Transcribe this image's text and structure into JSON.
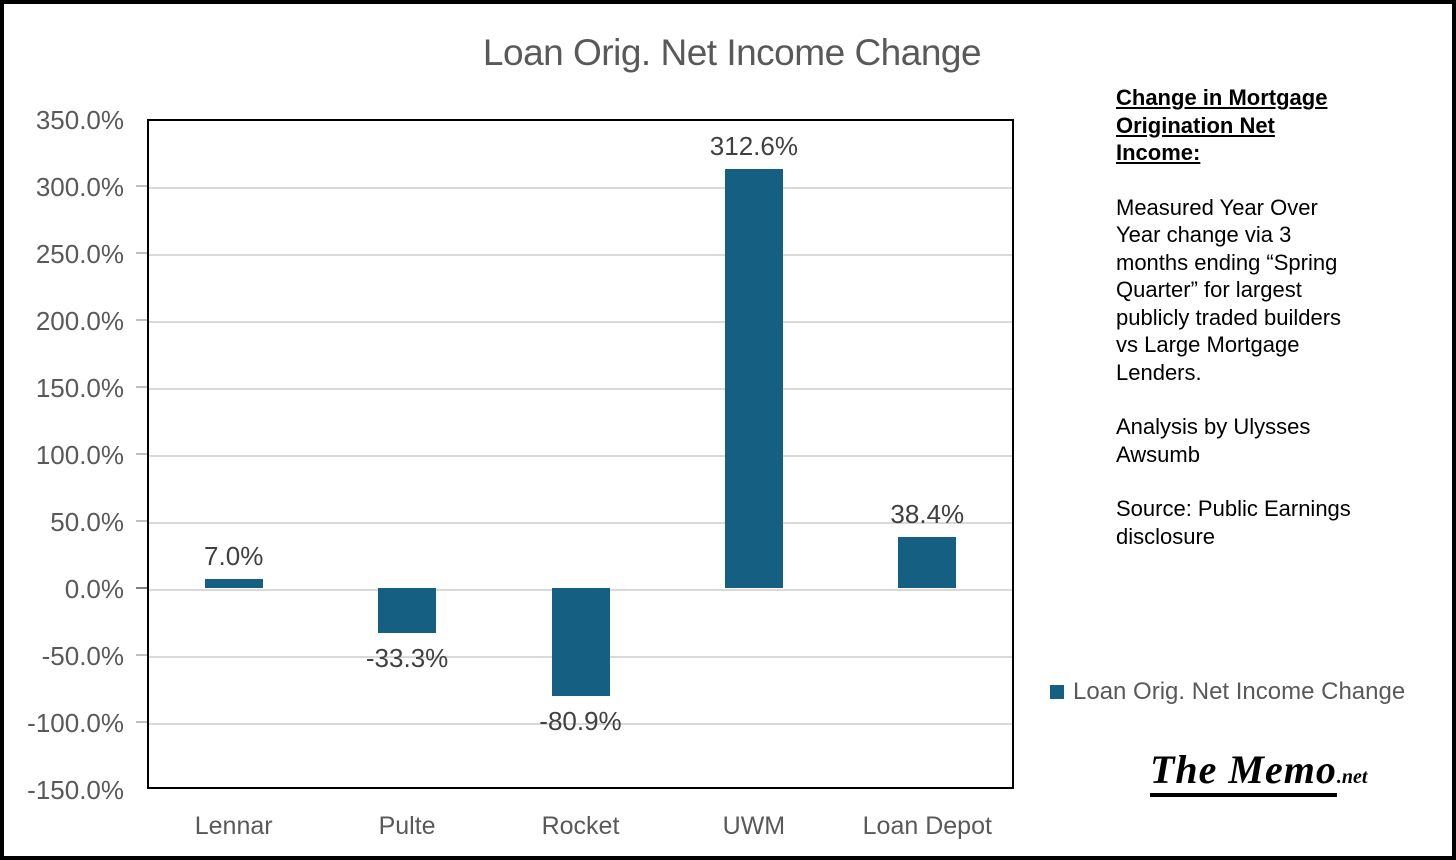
{
  "chart_data": {
    "type": "bar",
    "title": "Loan Orig. Net Income Change",
    "categories": [
      "Lennar",
      "Pulte",
      "Rocket",
      "UWM",
      "Loan Depot"
    ],
    "values": [
      7.0,
      -33.3,
      -80.9,
      312.6,
      38.4
    ],
    "data_labels": [
      "7.0%",
      "-33.3%",
      "-80.9%",
      "312.6%",
      "38.4%"
    ],
    "ylim": [
      -150,
      350
    ],
    "ytick_step": 50,
    "yticks": [
      {
        "value": 350,
        "label": "350.0%"
      },
      {
        "value": 300,
        "label": "300.0%"
      },
      {
        "value": 250,
        "label": "250.0%"
      },
      {
        "value": 200,
        "label": "200.0%"
      },
      {
        "value": 150,
        "label": "150.0%"
      },
      {
        "value": 100,
        "label": "100.0%"
      },
      {
        "value": 50,
        "label": "50.0%"
      },
      {
        "value": 0,
        "label": "0.0%"
      },
      {
        "value": -50,
        "label": "-50.0%"
      },
      {
        "value": -100,
        "label": "-100.0%"
      },
      {
        "value": -150,
        "label": "-150.0%"
      }
    ],
    "grid": true,
    "legend_position": "right",
    "colors": {
      "bar": "#156082",
      "gridline": "#D9D9D9",
      "tick": "#BFBFBF",
      "axis_text": "#595959",
      "data_label": "#404040",
      "title_text": "#595959",
      "plot_border": "#000000"
    }
  },
  "legend": {
    "swatch_color": "#156082",
    "label": "Loan Orig. Net Income Change"
  },
  "annotation_panel": {
    "heading": "Change in Mortgage Origination Net Income:",
    "paragraphs": [
      "Measured Year Over Year change via 3 months ending “Spring Quarter” for largest publicly traded builders vs Large Mortgage Lenders.",
      "Analysis by Ulysses Awsumb",
      "Source: Public Earnings disclosure"
    ]
  },
  "branding": {
    "name": "The Memo",
    "suffix": ".net"
  }
}
